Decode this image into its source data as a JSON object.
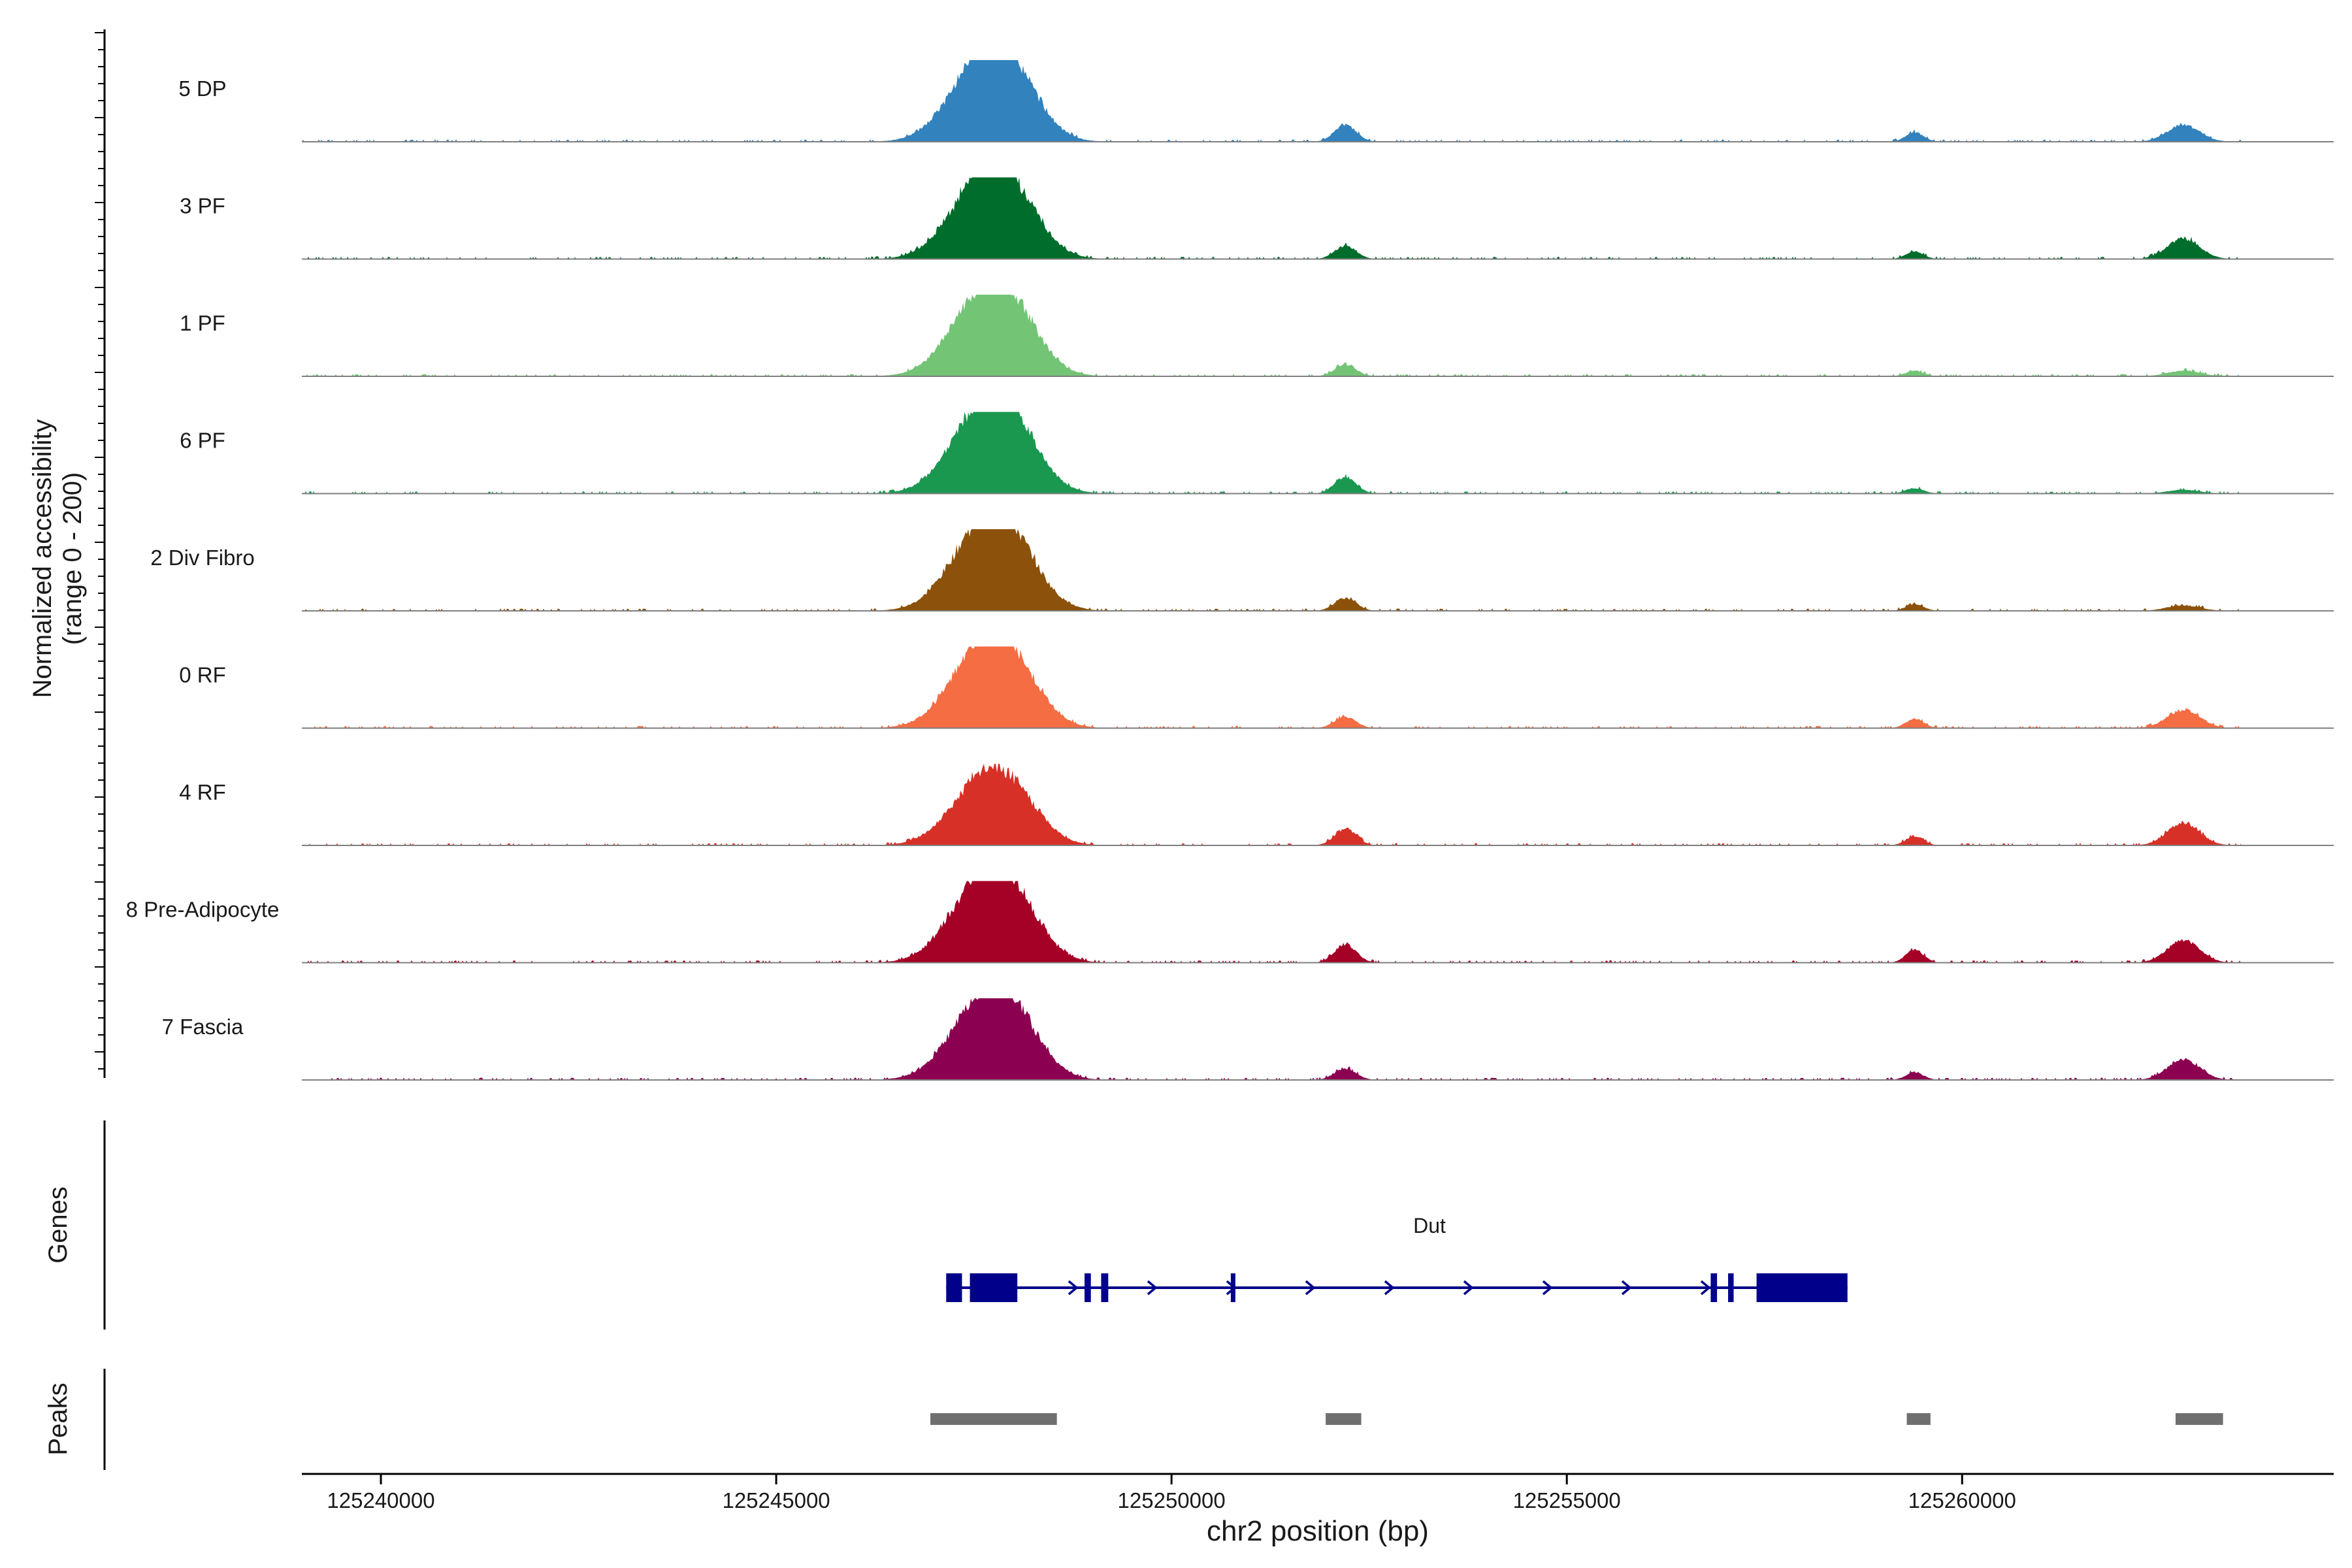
{
  "chart_data": {
    "type": "area",
    "title": "",
    "y_axis_label": "Normalized accessibility",
    "y_axis_range_label": "(range 0 - 200)",
    "ylim": [
      0,
      200
    ],
    "xlabel": "chr2 position (bp)",
    "xlim": [
      125239000,
      125264700
    ],
    "x_ticks": [
      {
        "value": 125240000,
        "label": "125240000"
      },
      {
        "value": 125245000,
        "label": "125245000"
      },
      {
        "value": 125250000,
        "label": "125250000"
      },
      {
        "value": 125255000,
        "label": "125255000"
      },
      {
        "value": 125260000,
        "label": "125260000"
      }
    ],
    "series": [
      {
        "name": "5 DP",
        "color": "#3282BD",
        "peaks": [
          [
            125247600,
            200,
            900
          ],
          [
            125248000,
            110,
            800
          ],
          [
            125252200,
            45,
            300
          ],
          [
            125259400,
            25,
            250
          ],
          [
            125262800,
            45,
            450
          ]
        ]
      },
      {
        "name": "3 PF",
        "color": "#006D2C",
        "peaks": [
          [
            125247600,
            190,
            900
          ],
          [
            125248000,
            110,
            800
          ],
          [
            125252200,
            35,
            300
          ],
          [
            125259400,
            20,
            250
          ],
          [
            125262800,
            55,
            450
          ]
        ]
      },
      {
        "name": "1 PF",
        "color": "#74C476",
        "peaks": [
          [
            125247600,
            190,
            900
          ],
          [
            125248000,
            110,
            800
          ],
          [
            125252200,
            30,
            300
          ],
          [
            125259400,
            15,
            250
          ],
          [
            125262800,
            15,
            450
          ]
        ]
      },
      {
        "name": "6 PF",
        "color": "#1A9850",
        "peaks": [
          [
            125247600,
            200,
            900
          ],
          [
            125248000,
            110,
            800
          ],
          [
            125252200,
            45,
            300
          ],
          [
            125259400,
            15,
            250
          ],
          [
            125262800,
            10,
            450
          ]
        ]
      },
      {
        "name": "2 Div Fibro",
        "color": "#8C510A",
        "peaks": [
          [
            125247600,
            200,
            900
          ],
          [
            125248000,
            110,
            800
          ],
          [
            125252200,
            35,
            300
          ],
          [
            125259400,
            18,
            250
          ],
          [
            125262800,
            15,
            450
          ]
        ]
      },
      {
        "name": "0 RF",
        "color": "#F46D43",
        "peaks": [
          [
            125247600,
            190,
            900
          ],
          [
            125248000,
            110,
            800
          ],
          [
            125252200,
            30,
            300
          ],
          [
            125259400,
            25,
            250
          ],
          [
            125262800,
            50,
            450
          ]
        ]
      },
      {
        "name": "4 RF",
        "color": "#D73027",
        "peaks": [
          [
            125247600,
            150,
            900
          ],
          [
            125248000,
            90,
            800
          ],
          [
            125252200,
            45,
            300
          ],
          [
            125259400,
            25,
            250
          ],
          [
            125262800,
            60,
            450
          ]
        ]
      },
      {
        "name": "8 Pre-Adipocyte",
        "color": "#A50026",
        "peaks": [
          [
            125247600,
            200,
            900
          ],
          [
            125248000,
            110,
            800
          ],
          [
            125252200,
            50,
            300
          ],
          [
            125259400,
            35,
            250
          ],
          [
            125262800,
            60,
            450
          ]
        ]
      },
      {
        "name": "7 Fascia",
        "color": "#8B0050",
        "peaks": [
          [
            125247600,
            190,
            900
          ],
          [
            125248000,
            110,
            800
          ],
          [
            125252200,
            30,
            300
          ],
          [
            125259400,
            20,
            250
          ],
          [
            125262800,
            55,
            450
          ]
        ]
      }
    ],
    "genes_track_label": "Genes",
    "gene": {
      "name": "Dut",
      "strand": "+",
      "color": "#00008B",
      "start": 125247150,
      "end": 125258550,
      "exons": [
        [
          125247150,
          125247350
        ],
        [
          125247450,
          125248050
        ],
        [
          125248900,
          125248980
        ],
        [
          125249110,
          125249200
        ],
        [
          125250750,
          125250790
        ],
        [
          125256820,
          125256900
        ],
        [
          125257040,
          125257110
        ],
        [
          125257400,
          125258550
        ]
      ]
    },
    "peaks_track_label": "Peaks",
    "peak_regions": [
      [
        125246950,
        125248550
      ],
      [
        125251950,
        125252400
      ],
      [
        125259300,
        125259600
      ],
      [
        125262700,
        125263300
      ]
    ]
  }
}
